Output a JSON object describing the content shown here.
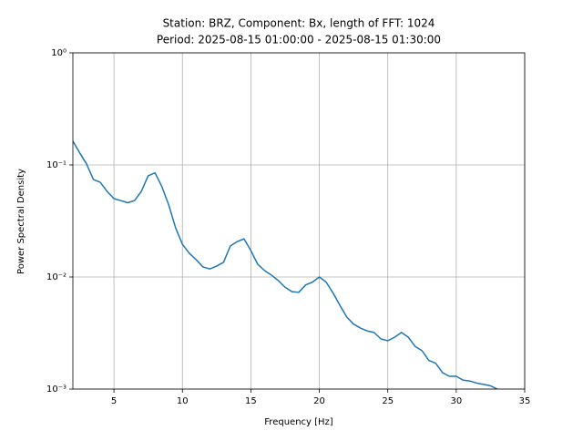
{
  "chart_data": {
    "type": "line",
    "title": "Station: BRZ, Component: Bx, length of FFT: 1024",
    "subtitle": "Period: 2025-08-15 01:00:00 - 2025-08-15 01:30:00",
    "x_label": "Frequency [Hz]",
    "y_label": "Power Spectral Density",
    "color": "#1f77b4",
    "log_y": true,
    "grid": true,
    "xlim": [
      2,
      35
    ],
    "xticks": [
      5,
      10,
      15,
      20,
      25,
      30,
      35
    ],
    "ylim": [
      0.001,
      1
    ],
    "yticks": [
      {
        "value": 0.001,
        "label": "10⁻³"
      },
      {
        "value": 0.01,
        "label": "10⁻²"
      },
      {
        "value": 0.1,
        "label": "10⁻¹"
      },
      {
        "value": 1,
        "label": "10⁰"
      }
    ],
    "x": [
      2,
      2.5,
      3,
      3.5,
      4,
      4.5,
      5,
      5.5,
      6,
      6.5,
      7,
      7.5,
      8,
      8.5,
      9,
      9.5,
      10,
      10.5,
      11,
      11.5,
      12,
      12.5,
      13,
      13.5,
      14,
      14.5,
      15,
      15.5,
      16,
      16.5,
      17,
      17.5,
      18,
      18.5,
      19,
      19.5,
      20,
      20.5,
      21,
      21.5,
      22,
      22.5,
      23,
      23.5,
      24,
      24.5,
      25,
      25.5,
      26,
      26.5,
      27,
      27.5,
      28,
      28.5,
      29,
      29.5,
      30,
      30.5,
      31,
      31.5,
      32,
      32.5,
      33
    ],
    "values": [
      0.163,
      0.128,
      0.102,
      0.074,
      0.07,
      0.058,
      0.05,
      0.048,
      0.046,
      0.048,
      0.058,
      0.08,
      0.085,
      0.064,
      0.044,
      0.0275,
      0.0196,
      0.0163,
      0.0143,
      0.0123,
      0.0118,
      0.0125,
      0.0135,
      0.0189,
      0.0207,
      0.0219,
      0.0172,
      0.013,
      0.0114,
      0.0104,
      0.0093,
      0.0081,
      0.0074,
      0.0073,
      0.0085,
      0.009,
      0.01,
      0.009,
      0.0072,
      0.0056,
      0.0044,
      0.0038,
      0.0035,
      0.0033,
      0.0032,
      0.0028,
      0.0027,
      0.0029,
      0.0032,
      0.0029,
      0.0024,
      0.0022,
      0.0018,
      0.0017,
      0.0014,
      0.0013,
      0.0013,
      0.0012,
      0.00118,
      0.00113,
      0.0011,
      0.00107,
      0.001
    ]
  }
}
